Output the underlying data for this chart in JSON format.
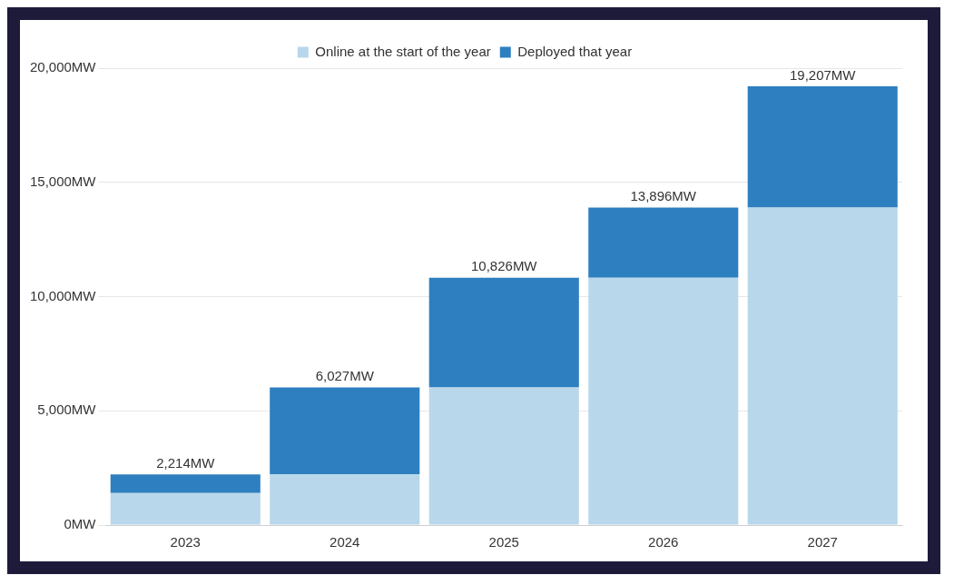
{
  "chart_data": {
    "type": "bar",
    "stacked": true,
    "categories": [
      "2023",
      "2024",
      "2025",
      "2026",
      "2027"
    ],
    "series": [
      {
        "name": "Online at the start of the year",
        "color": "#b9d7ea",
        "values": [
          1400,
          2214,
          6027,
          10826,
          13896
        ]
      },
      {
        "name": "Deployed that year",
        "color": "#2e7fbf",
        "values": [
          814,
          3813,
          4799,
          3070,
          5311
        ]
      }
    ],
    "totals": [
      "2,214MW",
      "6,027MW",
      "10,826MW",
      "13,896MW",
      "19,207MW"
    ],
    "ylim": [
      0,
      20000
    ],
    "yticks": [
      {
        "value": 0,
        "label": "0MW"
      },
      {
        "value": 5000,
        "label": "5,000MW"
      },
      {
        "value": 10000,
        "label": "10,000MW"
      },
      {
        "value": 15000,
        "label": "15,000MW"
      },
      {
        "value": 20000,
        "label": "20,000MW"
      }
    ],
    "grid": "y",
    "legend": "top"
  }
}
